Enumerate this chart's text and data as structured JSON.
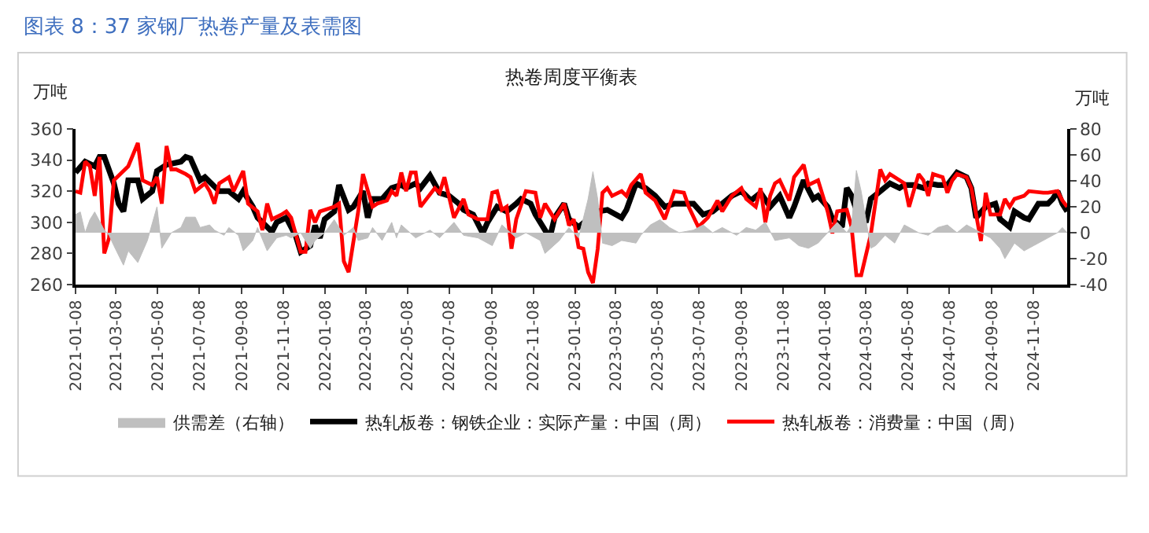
{
  "chart_data": {
    "type": "line",
    "title": "图表 8：37 家钢厂热卷产量及表需图",
    "subtitle": "热卷周度平衡表",
    "ylabel": "万吨",
    "y2label": "万吨",
    "xlim": [
      "2021-01-08",
      "2024-12-27"
    ],
    "xticks": [
      "2021-01-08",
      "2021-03-08",
      "2021-05-08",
      "2021-07-08",
      "2021-09-08",
      "2021-11-08",
      "2022-01-08",
      "2022-03-08",
      "2022-05-08",
      "2022-07-08",
      "2022-09-08",
      "2022-11-08",
      "2023-01-08",
      "2023-03-08",
      "2023-05-08",
      "2023-07-08",
      "2023-09-08",
      "2023-11-08",
      "2024-01-08",
      "2024-03-08",
      "2024-05-08",
      "2024-07-08",
      "2024-09-08",
      "2024-11-08"
    ],
    "ylim": [
      260,
      360
    ],
    "yticks": [
      260,
      280,
      300,
      320,
      340,
      360
    ],
    "y2lim": [
      -40,
      80
    ],
    "y2ticks": [
      -40,
      -20,
      0,
      20,
      40,
      60,
      80
    ],
    "legend": "bottom",
    "marker": "none",
    "line_style": "solid",
    "series": [
      {
        "name": "供需差（右轴）",
        "type": "area",
        "axis": "y2",
        "color": "#bfbfbf",
        "x": [
          "2021-01-08",
          "2021-01-15",
          "2021-01-22",
          "2021-01-29",
          "2021-02-05",
          "2021-02-19",
          "2021-02-26",
          "2021-03-05",
          "2021-03-19",
          "2021-03-26",
          "2021-04-09",
          "2021-04-23",
          "2021-05-07",
          "2021-05-14",
          "2021-05-28",
          "2021-06-11",
          "2021-06-18",
          "2021-07-02",
          "2021-07-09",
          "2021-07-23",
          "2021-07-30",
          "2021-08-13",
          "2021-08-20",
          "2021-09-03",
          "2021-09-10",
          "2021-09-24",
          "2021-10-01",
          "2021-10-15",
          "2021-10-29",
          "2021-11-12",
          "2021-11-19",
          "2021-12-03",
          "2021-12-17",
          "2021-12-24",
          "2022-01-07",
          "2022-01-21",
          "2022-02-04",
          "2022-02-18",
          "2022-02-25",
          "2022-03-11",
          "2022-03-18",
          "2022-04-01",
          "2022-04-15",
          "2022-04-22",
          "2022-04-29",
          "2022-05-20",
          "2022-06-10",
          "2022-06-24",
          "2022-07-15",
          "2022-07-29",
          "2022-08-19",
          "2022-09-09",
          "2022-09-23",
          "2022-10-14",
          "2022-10-28",
          "2022-11-18",
          "2022-11-25",
          "2022-12-16",
          "2022-12-30",
          "2023-01-13",
          "2023-01-27",
          "2023-02-03",
          "2023-02-10",
          "2023-02-17",
          "2023-03-03",
          "2023-03-17",
          "2023-04-07",
          "2023-04-14",
          "2023-04-28",
          "2023-05-12",
          "2023-05-26",
          "2023-06-09",
          "2023-06-30",
          "2023-07-14",
          "2023-07-28",
          "2023-08-11",
          "2023-09-01",
          "2023-09-15",
          "2023-09-29",
          "2023-10-13",
          "2023-10-27",
          "2023-11-17",
          "2023-12-01",
          "2023-12-15",
          "2023-12-29",
          "2024-01-12",
          "2024-01-26",
          "2024-02-09",
          "2024-02-16",
          "2024-02-23",
          "2024-03-01",
          "2024-03-15",
          "2024-03-22",
          "2024-04-05",
          "2024-04-19",
          "2024-05-03",
          "2024-05-24",
          "2024-06-07",
          "2024-06-21",
          "2024-07-05",
          "2024-07-19",
          "2024-08-02",
          "2024-08-16",
          "2024-09-06",
          "2024-09-20",
          "2024-09-27",
          "2024-10-11",
          "2024-10-25",
          "2024-11-08",
          "2024-11-29",
          "2024-12-13",
          "2024-12-20",
          "2024-12-27"
        ],
        "values": [
          14,
          16,
          0,
          10,
          16,
          2,
          -2,
          -10,
          -25,
          -14,
          -23,
          -6,
          20,
          -12,
          0,
          4,
          12,
          12,
          4,
          6,
          2,
          -2,
          4,
          -2,
          -14,
          -6,
          4,
          -14,
          -4,
          -2,
          -4,
          0,
          -12,
          -6,
          0,
          10,
          -2,
          4,
          -6,
          -4,
          4,
          -6,
          8,
          -4,
          6,
          -4,
          2,
          -4,
          8,
          -2,
          -4,
          -10,
          6,
          -4,
          0,
          -6,
          -16,
          -6,
          4,
          -4,
          26,
          47,
          26,
          -8,
          -10,
          -6,
          -8,
          -2,
          6,
          10,
          4,
          0,
          2,
          6,
          0,
          4,
          -2,
          4,
          2,
          8,
          -6,
          -4,
          -10,
          -12,
          -8,
          0,
          8,
          0,
          6,
          48,
          32,
          -12,
          -10,
          -2,
          -8,
          6,
          0,
          -2,
          4,
          6,
          0,
          6,
          2,
          -4,
          -12,
          -20,
          -8,
          -14,
          -10,
          -4,
          0,
          4,
          0
        ]
      },
      {
        "name": "热轧板卷：钢铁企业：实际产量：中国（周）",
        "color": "#000000",
        "x": [
          "2021-01-08",
          "2021-01-22",
          "2021-02-05",
          "2021-02-12",
          "2021-02-19",
          "2021-03-05",
          "2021-03-12",
          "2021-03-19",
          "2021-03-26",
          "2021-04-09",
          "2021-04-16",
          "2021-04-30",
          "2021-05-07",
          "2021-05-21",
          "2021-06-11",
          "2021-06-18",
          "2021-06-25",
          "2021-07-09",
          "2021-07-16",
          "2021-07-30",
          "2021-08-06",
          "2021-08-20",
          "2021-09-03",
          "2021-09-10",
          "2021-09-24",
          "2021-10-01",
          "2021-10-15",
          "2021-10-22",
          "2021-10-29",
          "2021-11-12",
          "2021-11-26",
          "2021-12-03",
          "2021-12-17",
          "2021-12-24",
          "2021-12-31",
          "2022-01-07",
          "2022-01-21",
          "2022-01-28",
          "2022-02-11",
          "2022-02-18",
          "2022-03-04",
          "2022-03-11",
          "2022-03-18",
          "2022-04-01",
          "2022-04-15",
          "2022-04-29",
          "2022-05-06",
          "2022-05-20",
          "2022-05-27",
          "2022-06-10",
          "2022-06-24",
          "2022-07-08",
          "2022-07-22",
          "2022-07-29",
          "2022-08-12",
          "2022-08-26",
          "2022-09-02",
          "2022-09-16",
          "2022-09-30",
          "2022-10-14",
          "2022-10-21",
          "2022-11-04",
          "2022-11-11",
          "2022-12-02",
          "2022-12-09",
          "2022-12-23",
          "2022-12-30",
          "2023-01-13",
          "2023-01-27",
          "2023-02-10",
          "2023-02-24",
          "2023-03-17",
          "2023-03-24",
          "2023-04-07",
          "2023-04-21",
          "2023-05-05",
          "2023-05-19",
          "2023-06-02",
          "2023-06-16",
          "2023-06-30",
          "2023-07-14",
          "2023-07-28",
          "2023-08-11",
          "2023-08-25",
          "2023-09-08",
          "2023-09-22",
          "2023-10-06",
          "2023-10-20",
          "2023-11-03",
          "2023-11-17",
          "2023-11-24",
          "2023-12-08",
          "2023-12-22",
          "2023-12-29",
          "2024-01-12",
          "2024-01-19",
          "2024-02-02",
          "2024-02-09",
          "2024-02-16",
          "2024-02-23",
          "2024-03-08",
          "2024-03-15",
          "2024-03-29",
          "2024-04-12",
          "2024-04-26",
          "2024-05-03",
          "2024-05-17",
          "2024-05-31",
          "2024-06-07",
          "2024-06-21",
          "2024-07-05",
          "2024-07-19",
          "2024-08-02",
          "2024-08-09",
          "2024-08-16",
          "2024-08-30",
          "2024-09-13",
          "2024-09-20",
          "2024-10-04",
          "2024-10-11",
          "2024-10-25",
          "2024-11-01",
          "2024-11-15",
          "2024-11-29",
          "2024-12-06",
          "2024-12-13",
          "2024-12-20",
          "2024-12-27"
        ],
        "values": [
          332,
          339,
          336,
          342,
          342,
          325,
          312,
          307,
          327,
          327,
          315,
          320,
          333,
          337,
          339,
          342,
          341,
          327,
          329,
          323,
          320,
          320,
          315,
          320,
          310,
          303,
          297,
          294,
          300,
          303,
          291,
          281,
          285,
          298,
          290,
          302,
          307,
          324,
          308,
          310,
          320,
          303,
          315,
          315,
          322,
          324,
          322,
          325,
          322,
          330,
          319,
          317,
          312,
          308,
          305,
          293,
          300,
          310,
          307,
          312,
          315,
          312,
          305,
          290,
          303,
          312,
          302,
          297,
          302,
          307,
          308,
          303,
          308,
          325,
          322,
          317,
          310,
          312,
          312,
          312,
          305,
          307,
          312,
          317,
          320,
          314,
          319,
          310,
          317,
          303,
          310,
          327,
          315,
          317,
          310,
          302,
          297,
          322,
          317,
          308,
          300,
          315,
          320,
          325,
          322,
          324,
          324,
          322,
          325,
          324,
          324,
          332,
          329,
          322,
          303,
          310,
          312,
          302,
          297,
          307,
          303,
          302,
          312,
          312,
          315,
          320,
          312,
          307
        ]
      },
      {
        "name": "热轧板卷：消费量：中国（周）",
        "color": "#ff0000",
        "x": [
          "2021-01-08",
          "2021-01-15",
          "2021-01-22",
          "2021-01-29",
          "2021-02-05",
          "2021-02-12",
          "2021-02-19",
          "2021-02-26",
          "2021-03-05",
          "2021-03-26",
          "2021-04-09",
          "2021-04-16",
          "2021-04-30",
          "2021-05-07",
          "2021-05-14",
          "2021-05-21",
          "2021-05-28",
          "2021-06-04",
          "2021-06-18",
          "2021-06-25",
          "2021-07-02",
          "2021-07-16",
          "2021-07-23",
          "2021-07-30",
          "2021-08-06",
          "2021-08-20",
          "2021-08-27",
          "2021-09-10",
          "2021-09-17",
          "2021-10-01",
          "2021-10-08",
          "2021-10-15",
          "2021-10-22",
          "2021-11-05",
          "2021-11-12",
          "2021-11-19",
          "2021-12-03",
          "2021-12-10",
          "2021-12-17",
          "2021-12-24",
          "2021-12-31",
          "2022-01-21",
          "2022-01-28",
          "2022-02-04",
          "2022-02-11",
          "2022-02-25",
          "2022-03-04",
          "2022-03-18",
          "2022-03-25",
          "2022-04-08",
          "2022-04-15",
          "2022-04-22",
          "2022-04-29",
          "2022-05-06",
          "2022-05-13",
          "2022-05-20",
          "2022-05-27",
          "2022-06-17",
          "2022-06-24",
          "2022-07-01",
          "2022-07-15",
          "2022-07-29",
          "2022-08-05",
          "2022-08-19",
          "2022-09-02",
          "2022-09-09",
          "2022-09-16",
          "2022-09-23",
          "2022-09-30",
          "2022-10-07",
          "2022-10-14",
          "2022-10-28",
          "2022-11-11",
          "2022-11-18",
          "2022-11-25",
          "2022-12-09",
          "2022-12-23",
          "2022-12-30",
          "2023-01-06",
          "2023-01-13",
          "2023-01-20",
          "2023-01-27",
          "2023-02-03",
          "2023-02-10",
          "2023-02-17",
          "2023-02-24",
          "2023-03-03",
          "2023-03-17",
          "2023-03-24",
          "2023-03-31",
          "2023-04-14",
          "2023-04-21",
          "2023-05-05",
          "2023-05-19",
          "2023-06-02",
          "2023-06-16",
          "2023-06-23",
          "2023-07-07",
          "2023-07-21",
          "2023-08-04",
          "2023-08-11",
          "2023-08-25",
          "2023-09-08",
          "2023-09-15",
          "2023-09-29",
          "2023-10-06",
          "2023-10-13",
          "2023-10-20",
          "2023-10-27",
          "2023-11-03",
          "2023-11-17",
          "2023-11-24",
          "2023-12-08",
          "2023-12-15",
          "2023-12-29",
          "2024-01-12",
          "2024-01-19",
          "2024-01-26",
          "2024-02-09",
          "2024-02-16",
          "2024-02-23",
          "2024-03-01",
          "2024-03-15",
          "2024-03-29",
          "2024-04-05",
          "2024-04-12",
          "2024-04-26",
          "2024-05-03",
          "2024-05-10",
          "2024-05-24",
          "2024-05-31",
          "2024-06-07",
          "2024-06-14",
          "2024-06-28",
          "2024-07-05",
          "2024-07-12",
          "2024-07-19",
          "2024-08-02",
          "2024-08-09",
          "2024-08-23",
          "2024-08-30",
          "2024-09-06",
          "2024-09-20",
          "2024-09-27",
          "2024-10-04",
          "2024-10-11",
          "2024-10-25",
          "2024-11-01",
          "2024-11-22",
          "2024-11-29",
          "2024-12-13",
          "2024-12-20",
          "2024-12-27"
        ],
        "values": [
          320,
          319,
          339,
          336,
          317,
          342,
          280,
          290,
          327,
          336,
          351,
          327,
          324,
          329,
          312,
          349,
          334,
          334,
          331,
          329,
          320,
          325,
          320,
          312,
          325,
          329,
          320,
          333,
          312,
          307,
          295,
          312,
          302,
          305,
          307,
          303,
          281,
          281,
          308,
          300,
          307,
          310,
          312,
          275,
          268,
          307,
          331,
          310,
          312,
          314,
          320,
          317,
          332,
          320,
          332,
          332,
          310,
          322,
          319,
          329,
          303,
          315,
          305,
          302,
          302,
          319,
          320,
          308,
          310,
          283,
          302,
          320,
          319,
          303,
          312,
          302,
          312,
          298,
          302,
          284,
          283,
          268,
          261,
          283,
          319,
          322,
          317,
          320,
          317,
          324,
          331,
          319,
          314,
          302,
          320,
          319,
          310,
          297,
          303,
          314,
          307,
          317,
          322,
          315,
          310,
          322,
          300,
          317,
          325,
          327,
          314,
          329,
          337,
          324,
          327,
          307,
          293,
          307,
          308,
          297,
          266,
          266,
          292,
          334,
          327,
          331,
          327,
          325,
          310,
          331,
          327,
          317,
          331,
          329,
          319,
          327,
          331,
          329,
          322,
          288,
          319,
          305,
          305,
          315,
          310,
          315,
          317,
          320,
          319,
          319,
          320,
          314,
          310
        ]
      }
    ]
  }
}
